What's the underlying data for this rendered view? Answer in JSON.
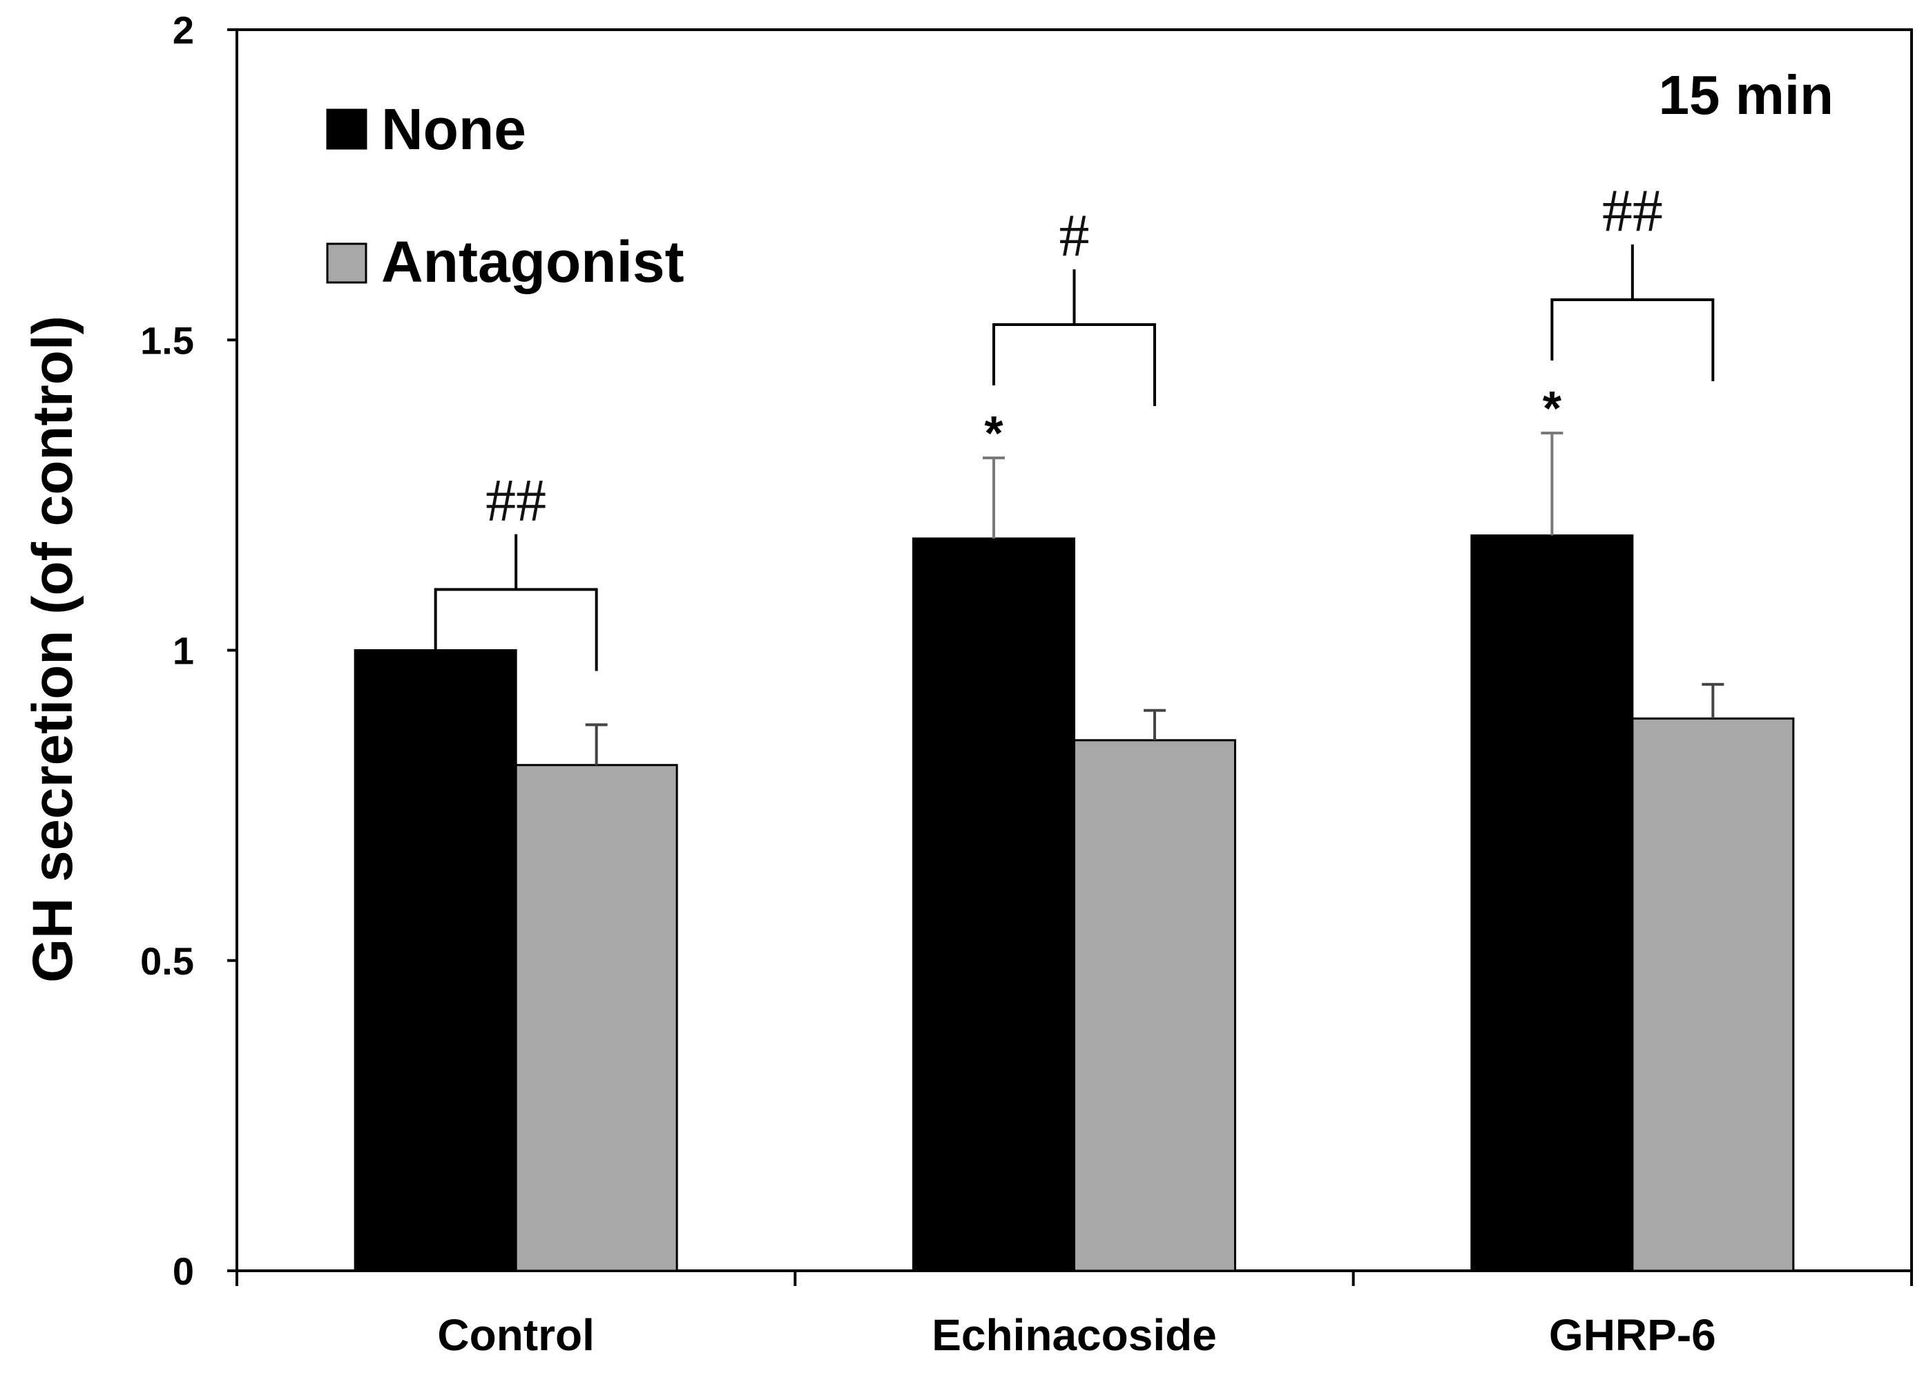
{
  "chart_data": {
    "type": "bar",
    "ylabel": "GH secretion  (of control)",
    "ylim": [
      0,
      2
    ],
    "yticks": [
      "0",
      "0.5",
      "1",
      "1.5",
      "2"
    ],
    "categories": [
      "Control",
      "Echinacoside",
      "GHRP-6"
    ],
    "series": [
      {
        "name": "None",
        "color": "#000000",
        "values": [
          1.0,
          1.18,
          1.185
        ],
        "errors": [
          0.0,
          0.13,
          0.165
        ]
      },
      {
        "name": "Antagonist",
        "color": "#a8a8a8",
        "values": [
          0.815,
          0.855,
          0.89
        ],
        "errors": [
          0.065,
          0.048,
          0.055
        ]
      }
    ],
    "annotation": "15 min",
    "legend_position": "top-left",
    "significance": {
      "between_groups": [
        "##",
        "#",
        "##"
      ],
      "vs_control": [
        "",
        "*",
        "*"
      ]
    }
  }
}
